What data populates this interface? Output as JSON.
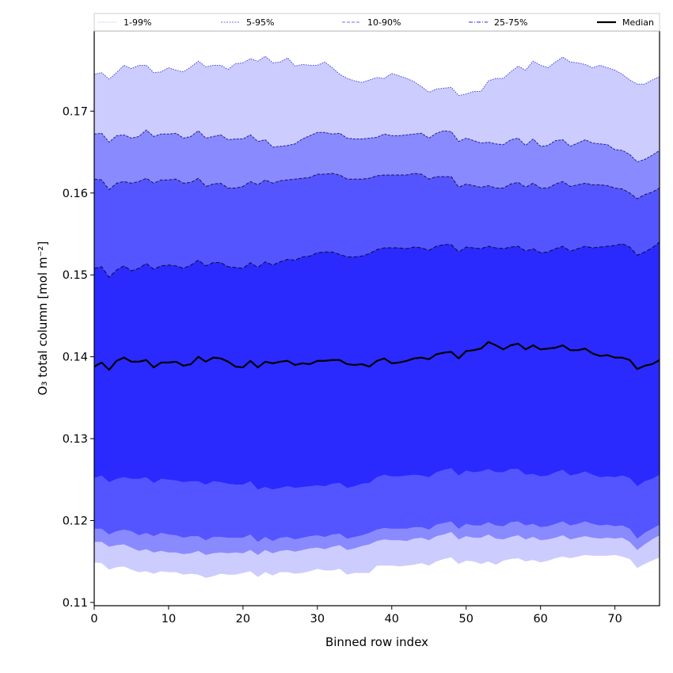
{
  "chart_data": {
    "type": "area",
    "title": "",
    "xlabel": "Binned row index",
    "ylabel": "O₃ total column [mol m⁻²]",
    "xlim": [
      0,
      76
    ],
    "ylim": [
      0.1096,
      0.1798
    ],
    "xticks": [
      0,
      10,
      20,
      30,
      40,
      50,
      60,
      70
    ],
    "xtick_labels": [
      "0",
      "10",
      "20",
      "30",
      "40",
      "50",
      "60",
      "70"
    ],
    "yticks": [
      0.11,
      0.12,
      0.13,
      0.14,
      0.15,
      0.16,
      0.17
    ],
    "ytick_labels": [
      "0.11",
      "0.12",
      "0.13",
      "0.14",
      "0.15",
      "0.16",
      "0.17"
    ],
    "grid": false,
    "legend_position": "top (above plot, horizontal)",
    "legend": [
      {
        "label": "1-99%",
        "style": "dotted",
        "color": "#ccccff"
      },
      {
        "label": "5-95%",
        "style": "dotted",
        "color": "#8a8aff"
      },
      {
        "label": "10-90%",
        "style": "dashed",
        "color": "#8a8aff"
      },
      {
        "label": "25-75%",
        "style": "dashdot",
        "color": "#5555ff"
      },
      {
        "label": "Median",
        "style": "solid",
        "color": "#000000"
      }
    ],
    "x": [
      0,
      1,
      2,
      3,
      4,
      5,
      6,
      7,
      8,
      9,
      10,
      11,
      12,
      13,
      14,
      15,
      16,
      17,
      18,
      19,
      20,
      21,
      22,
      23,
      24,
      25,
      26,
      27,
      28,
      29,
      30,
      31,
      32,
      33,
      34,
      35,
      36,
      37,
      38,
      39,
      40,
      41,
      42,
      43,
      44,
      45,
      46,
      47,
      48,
      49,
      50,
      51,
      52,
      53,
      54,
      55,
      56,
      57,
      58,
      59,
      60,
      61,
      62,
      63,
      64,
      65,
      66,
      67,
      68,
      69,
      70,
      71,
      72,
      73,
      74,
      75,
      76
    ],
    "series": [
      {
        "name": "1-99% upper",
        "values": [
          0.1745,
          0.1747,
          0.1739,
          0.1747,
          0.1756,
          0.1752,
          0.1756,
          0.1756,
          0.1747,
          0.1748,
          0.1753,
          0.175,
          0.1748,
          0.1754,
          0.1761,
          0.1754,
          0.1756,
          0.1756,
          0.1751,
          0.1758,
          0.1759,
          0.1764,
          0.1761,
          0.1767,
          0.1759,
          0.176,
          0.1765,
          0.1755,
          0.1757,
          0.1756,
          0.1756,
          0.176,
          0.1753,
          0.1745,
          0.174,
          0.1737,
          0.1735,
          0.1738,
          0.1741,
          0.174,
          0.1746,
          0.1743,
          0.174,
          0.1736,
          0.173,
          0.1723,
          0.1727,
          0.1728,
          0.1729,
          0.1719,
          0.1721,
          0.1724,
          0.1724,
          0.1737,
          0.174,
          0.174,
          0.1748,
          0.1755,
          0.175,
          0.1761,
          0.1756,
          0.1753,
          0.176,
          0.1766,
          0.176,
          0.1759,
          0.1757,
          0.1753,
          0.1756,
          0.1753,
          0.175,
          0.1745,
          0.1738,
          0.1733,
          0.1733,
          0.1738,
          0.1742
        ]
      },
      {
        "name": "5-95% upper",
        "values": [
          0.1672,
          0.1673,
          0.1662,
          0.167,
          0.1671,
          0.1667,
          0.1669,
          0.1677,
          0.1669,
          0.1672,
          0.1672,
          0.1673,
          0.1667,
          0.1669,
          0.1676,
          0.1667,
          0.1669,
          0.1671,
          0.1665,
          0.1666,
          0.1666,
          0.1671,
          0.1663,
          0.1665,
          0.1656,
          0.1657,
          0.1658,
          0.166,
          0.1666,
          0.167,
          0.1674,
          0.1674,
          0.1672,
          0.1673,
          0.1667,
          0.1666,
          0.1666,
          0.1667,
          0.1668,
          0.1672,
          0.167,
          0.167,
          0.1671,
          0.1672,
          0.1673,
          0.1667,
          0.1673,
          0.1676,
          0.1675,
          0.1663,
          0.1667,
          0.1664,
          0.1661,
          0.1662,
          0.166,
          0.1659,
          0.1665,
          0.1667,
          0.1658,
          0.1666,
          0.1657,
          0.1658,
          0.1664,
          0.1665,
          0.1657,
          0.1661,
          0.1665,
          0.1661,
          0.166,
          0.1659,
          0.1653,
          0.1652,
          0.1647,
          0.1638,
          0.1641,
          0.1646,
          0.1652
        ]
      },
      {
        "name": "10-90% upper",
        "values": [
          0.1617,
          0.1616,
          0.1604,
          0.1612,
          0.1614,
          0.1612,
          0.1614,
          0.1618,
          0.1612,
          0.1616,
          0.1616,
          0.1617,
          0.1612,
          0.1613,
          0.1618,
          0.1608,
          0.1611,
          0.1612,
          0.1606,
          0.1606,
          0.1608,
          0.1614,
          0.161,
          0.1616,
          0.1612,
          0.1615,
          0.1616,
          0.1617,
          0.1618,
          0.1619,
          0.1623,
          0.1623,
          0.1624,
          0.1622,
          0.1617,
          0.1617,
          0.1617,
          0.1618,
          0.1621,
          0.1622,
          0.1622,
          0.1622,
          0.1622,
          0.1624,
          0.1623,
          0.1617,
          0.162,
          0.162,
          0.162,
          0.1607,
          0.1611,
          0.1609,
          0.1607,
          0.1609,
          0.1606,
          0.1606,
          0.1611,
          0.1613,
          0.1607,
          0.1612,
          0.1606,
          0.1606,
          0.1611,
          0.1614,
          0.1608,
          0.161,
          0.1612,
          0.161,
          0.161,
          0.1609,
          0.1606,
          0.1605,
          0.16,
          0.1593,
          0.1598,
          0.1601,
          0.1606
        ]
      },
      {
        "name": "25-75% upper",
        "values": [
          0.1508,
          0.151,
          0.1497,
          0.1506,
          0.1511,
          0.1505,
          0.1508,
          0.1514,
          0.1507,
          0.1511,
          0.1512,
          0.1511,
          0.1508,
          0.1512,
          0.1518,
          0.1511,
          0.1515,
          0.1515,
          0.151,
          0.1509,
          0.1508,
          0.1515,
          0.1509,
          0.1516,
          0.1512,
          0.1516,
          0.1519,
          0.1518,
          0.1522,
          0.1523,
          0.1527,
          0.1528,
          0.1528,
          0.1525,
          0.1522,
          0.1522,
          0.1523,
          0.1526,
          0.1531,
          0.1533,
          0.1533,
          0.1533,
          0.1532,
          0.1534,
          0.1533,
          0.153,
          0.1535,
          0.1537,
          0.1537,
          0.1528,
          0.1534,
          0.1533,
          0.1532,
          0.1535,
          0.1533,
          0.1532,
          0.1534,
          0.1535,
          0.1529,
          0.1532,
          0.1527,
          0.1528,
          0.1532,
          0.1535,
          0.1529,
          0.1532,
          0.1535,
          0.1533,
          0.1534,
          0.1535,
          0.1536,
          0.1538,
          0.1534,
          0.1524,
          0.1528,
          0.1533,
          0.154
        ]
      },
      {
        "name": "Median",
        "values": [
          0.1388,
          0.1393,
          0.1384,
          0.1395,
          0.1399,
          0.1394,
          0.1394,
          0.1396,
          0.1387,
          0.1393,
          0.1393,
          0.1394,
          0.1389,
          0.1391,
          0.14,
          0.1394,
          0.1399,
          0.1398,
          0.1394,
          0.1388,
          0.1387,
          0.1395,
          0.1387,
          0.1394,
          0.1392,
          0.1394,
          0.1395,
          0.139,
          0.1392,
          0.1391,
          0.1395,
          0.1395,
          0.1396,
          0.1396,
          0.1391,
          0.139,
          0.1391,
          0.1388,
          0.1395,
          0.1398,
          0.1392,
          0.1393,
          0.1395,
          0.1398,
          0.1399,
          0.1397,
          0.1403,
          0.1405,
          0.1406,
          0.1398,
          0.1407,
          0.1408,
          0.141,
          0.1418,
          0.1414,
          0.1409,
          0.1414,
          0.1416,
          0.1409,
          0.1414,
          0.1409,
          0.141,
          0.1411,
          0.1414,
          0.1408,
          0.1408,
          0.141,
          0.1404,
          0.1401,
          0.1402,
          0.1399,
          0.1399,
          0.1396,
          0.1385,
          0.1389,
          0.1391,
          0.1396
        ]
      },
      {
        "name": "25-75% lower",
        "values": [
          0.1252,
          0.1255,
          0.1247,
          0.1251,
          0.1253,
          0.1251,
          0.1251,
          0.1253,
          0.1246,
          0.1251,
          0.125,
          0.1249,
          0.1247,
          0.1248,
          0.1248,
          0.1244,
          0.1248,
          0.1247,
          0.1245,
          0.1244,
          0.1244,
          0.1248,
          0.1238,
          0.1241,
          0.1238,
          0.124,
          0.1242,
          0.124,
          0.1241,
          0.1242,
          0.1243,
          0.1242,
          0.1245,
          0.1246,
          0.124,
          0.1242,
          0.1245,
          0.1246,
          0.1253,
          0.1256,
          0.1254,
          0.1254,
          0.1255,
          0.1256,
          0.1255,
          0.1253,
          0.1259,
          0.1262,
          0.1264,
          0.1255,
          0.1261,
          0.1259,
          0.126,
          0.1263,
          0.1259,
          0.1259,
          0.1263,
          0.1263,
          0.1256,
          0.1257,
          0.1254,
          0.1255,
          0.1259,
          0.1262,
          0.1255,
          0.1257,
          0.126,
          0.1256,
          0.1253,
          0.1254,
          0.1253,
          0.1255,
          0.1252,
          0.1242,
          0.1248,
          0.1251,
          0.1256
        ]
      },
      {
        "name": "10-90% lower",
        "values": [
          0.119,
          0.119,
          0.1183,
          0.1187,
          0.1189,
          0.1187,
          0.1182,
          0.1185,
          0.1181,
          0.1185,
          0.1183,
          0.1182,
          0.1179,
          0.1181,
          0.1181,
          0.1176,
          0.118,
          0.118,
          0.1179,
          0.1179,
          0.1179,
          0.1183,
          0.1174,
          0.118,
          0.1175,
          0.1179,
          0.118,
          0.1177,
          0.1179,
          0.1181,
          0.1182,
          0.118,
          0.1183,
          0.1184,
          0.1178,
          0.118,
          0.1182,
          0.1185,
          0.1189,
          0.1191,
          0.119,
          0.119,
          0.119,
          0.1192,
          0.1192,
          0.1189,
          0.1195,
          0.1197,
          0.1199,
          0.119,
          0.1196,
          0.1194,
          0.1194,
          0.1198,
          0.1194,
          0.1193,
          0.1198,
          0.1199,
          0.1194,
          0.1196,
          0.1192,
          0.1193,
          0.1196,
          0.1199,
          0.1194,
          0.1196,
          0.1199,
          0.1196,
          0.1194,
          0.1195,
          0.1193,
          0.1194,
          0.119,
          0.1178,
          0.1185,
          0.119,
          0.1195
        ]
      },
      {
        "name": "5-95% lower",
        "values": [
          0.1174,
          0.1174,
          0.1168,
          0.117,
          0.1171,
          0.1167,
          0.1163,
          0.1165,
          0.1161,
          0.1163,
          0.1161,
          0.1161,
          0.1159,
          0.116,
          0.1163,
          0.1158,
          0.116,
          0.1161,
          0.116,
          0.1161,
          0.116,
          0.1164,
          0.1158,
          0.1164,
          0.116,
          0.1163,
          0.1164,
          0.1162,
          0.1164,
          0.1166,
          0.1167,
          0.1165,
          0.1168,
          0.117,
          0.1164,
          0.1166,
          0.1169,
          0.1171,
          0.1175,
          0.1177,
          0.1176,
          0.1176,
          0.1175,
          0.1178,
          0.1179,
          0.1176,
          0.1181,
          0.1183,
          0.1186,
          0.1177,
          0.1181,
          0.1179,
          0.1179,
          0.1183,
          0.1178,
          0.1177,
          0.118,
          0.1182,
          0.1177,
          0.118,
          0.1176,
          0.1177,
          0.1179,
          0.1182,
          0.1177,
          0.1179,
          0.1181,
          0.1179,
          0.1178,
          0.1179,
          0.1178,
          0.1179,
          0.1174,
          0.1164,
          0.1171,
          0.1177,
          0.1182
        ]
      },
      {
        "name": "1-99% lower",
        "values": [
          0.1149,
          0.1148,
          0.114,
          0.1143,
          0.1144,
          0.114,
          0.1137,
          0.1138,
          0.1135,
          0.1138,
          0.1137,
          0.1137,
          0.1134,
          0.1135,
          0.1134,
          0.113,
          0.1132,
          0.1135,
          0.1134,
          0.1134,
          0.1136,
          0.1138,
          0.1131,
          0.1137,
          0.1133,
          0.1137,
          0.1137,
          0.1135,
          0.1136,
          0.1138,
          0.1141,
          0.1139,
          0.1139,
          0.1141,
          0.1134,
          0.1136,
          0.1136,
          0.1136,
          0.1145,
          0.1145,
          0.1145,
          0.1144,
          0.1145,
          0.1146,
          0.1148,
          0.1145,
          0.115,
          0.1153,
          0.1155,
          0.1147,
          0.1151,
          0.115,
          0.1147,
          0.115,
          0.1146,
          0.1151,
          0.1153,
          0.1154,
          0.115,
          0.1152,
          0.1149,
          0.1151,
          0.1154,
          0.1156,
          0.1154,
          0.1156,
          0.1158,
          0.1157,
          0.1157,
          0.1157,
          0.1158,
          0.1156,
          0.1153,
          0.1142,
          0.1147,
          0.1151,
          0.1155
        ]
      }
    ],
    "bands": [
      {
        "name": "1-99%",
        "upper": "1-99% upper",
        "lower": "1-99% lower",
        "fill": "#ccccff",
        "line": "#4444dd",
        "dash": "1.5,1.5"
      },
      {
        "name": "5-95%",
        "upper": "5-95% upper",
        "lower": "5-95% lower",
        "fill": "#8a8aff",
        "line": "#22229a",
        "dash": "3,1.5"
      },
      {
        "name": "10-90%",
        "upper": "10-90% upper",
        "lower": "10-90% lower",
        "fill": "#5555ff",
        "line": "#15155a",
        "dash": "4,2"
      },
      {
        "name": "25-75%",
        "upper": "25-75% upper",
        "lower": "25-75% lower",
        "fill": "#2a2aff",
        "line": "#0a0a3a",
        "dash": "5,2.5"
      }
    ]
  }
}
